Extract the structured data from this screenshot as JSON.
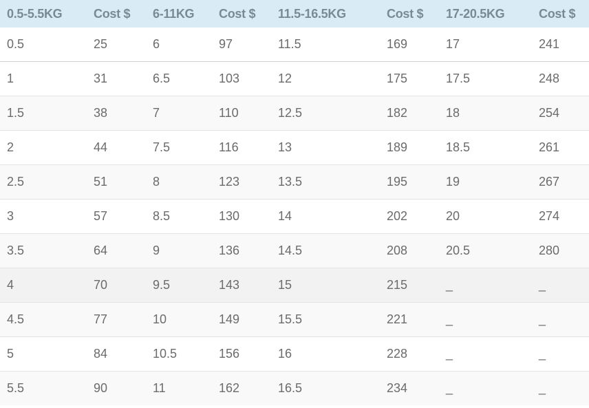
{
  "table": {
    "header": [
      "0.5-5.5KG",
      "Cost $",
      "6-11KG",
      "Cost $",
      "11.5-16.5KG",
      "Cost $",
      "17-20.5KG",
      "Cost $"
    ],
    "rows": [
      [
        "0.5",
        "25",
        "6",
        "97",
        "11.5",
        "169",
        "17",
        "241"
      ],
      [
        "1",
        "31",
        "6.5",
        "103",
        "12",
        "175",
        "17.5",
        "248"
      ],
      [
        "1.5",
        "38",
        "7",
        "110",
        "12.5",
        "182",
        "18",
        "254"
      ],
      [
        "2",
        "44",
        "7.5",
        "116",
        "13",
        "189",
        "18.5",
        "261"
      ],
      [
        "2.5",
        "51",
        "8",
        "123",
        "13.5",
        "195",
        "19",
        "267"
      ],
      [
        "3",
        "57",
        "8.5",
        "130",
        "14",
        "202",
        "20",
        "274"
      ],
      [
        "3.5",
        "64",
        "9",
        "136",
        "14.5",
        "208",
        "20.5",
        "280"
      ],
      [
        "4",
        "70",
        "9.5",
        "143",
        "15",
        "215",
        "_",
        "_"
      ],
      [
        "4.5",
        "77",
        "10",
        "149",
        "15.5",
        "221",
        "_",
        "_"
      ],
      [
        "5",
        "84",
        "10.5",
        "156",
        "16",
        "228",
        "_",
        "_"
      ],
      [
        "5.5",
        "90",
        "11",
        "162",
        "16.5",
        "234",
        "_",
        "_"
      ]
    ]
  }
}
